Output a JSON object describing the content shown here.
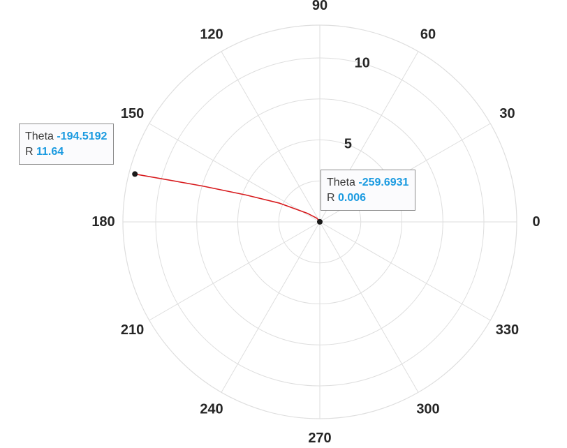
{
  "chart_data": {
    "type": "line",
    "subtype": "polar",
    "angle_unit": "degrees",
    "theta_ticks": [
      "0",
      "30",
      "60",
      "90",
      "120",
      "150",
      "180",
      "210",
      "240",
      "270",
      "300",
      "330"
    ],
    "r_tick_labels": [
      "5",
      "10"
    ],
    "r_label_angle": 80,
    "r_lim": [
      0,
      12
    ],
    "grid": true,
    "series": [
      {
        "color": "#d7191c",
        "theta": [
          -259.6931,
          -250,
          -230,
          -215,
          -205,
          -200,
          -197,
          -194.5192
        ],
        "r": [
          0.006,
          0.05,
          0.3,
          0.9,
          2.7,
          4.8,
          7.5,
          11.64
        ]
      }
    ],
    "datatips": [
      {
        "theta_label": "Theta",
        "theta_value": "-194.5192",
        "r_label": "R",
        "r_value": "11.64"
      },
      {
        "theta_label": "Theta",
        "theta_value": "-259.6931",
        "r_label": "R",
        "r_value": "0.006"
      }
    ]
  },
  "colors": {
    "grid": "#dedede",
    "line": "#d7191c",
    "tip_value": "#1a9ae0",
    "marker": "#1a1a1a"
  }
}
